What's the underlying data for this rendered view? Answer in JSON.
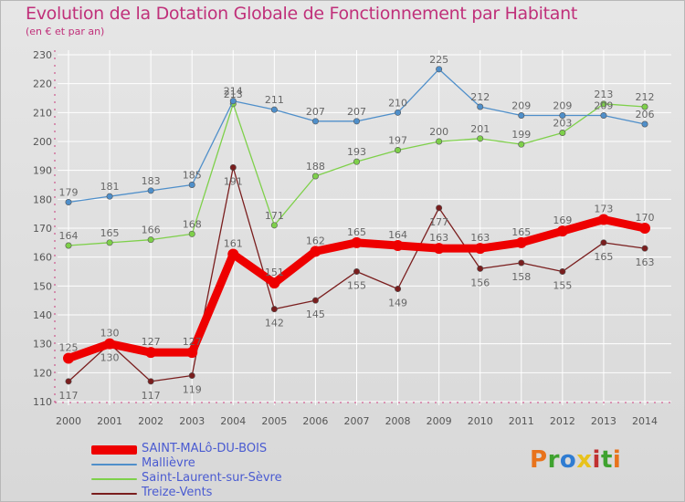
{
  "title": "Evolution de la Dotation Globale de Fonctionnement par Habitant",
  "subtitle": "(en € et par an)",
  "logo": {
    "text": "Proxiti",
    "colors": [
      "#e8731c",
      "#3fa22f",
      "#2f7cd2",
      "#e8c21c",
      "#c03030",
      "#3fa22f",
      "#e8731c"
    ]
  },
  "colors": {
    "grid": "#ffffff",
    "axis": "#888888",
    "tick_text": "#555555",
    "label_text": "#666666"
  },
  "chart_data": {
    "type": "line",
    "x": [
      "2000",
      "2001",
      "2002",
      "2003",
      "2004",
      "2005",
      "2006",
      "2007",
      "2008",
      "2009",
      "2010",
      "2011",
      "2012",
      "2013",
      "2014"
    ],
    "ylim": [
      110,
      230
    ],
    "yticks": [
      110,
      120,
      130,
      140,
      150,
      160,
      170,
      180,
      190,
      200,
      210,
      220,
      230
    ],
    "grid": true,
    "legend_position": "bottom-left",
    "series": [
      {
        "name": "SAINT-MALô-DU-BOIS",
        "color": "#ee0000",
        "thick": true,
        "values": [
          125,
          130,
          127,
          127,
          161,
          151,
          162,
          165,
          164,
          163,
          163,
          165,
          169,
          173,
          170
        ]
      },
      {
        "name": "Mallièvre",
        "color": "#4f8fca",
        "thick": false,
        "values": [
          179,
          181,
          183,
          185,
          214,
          211,
          207,
          207,
          210,
          225,
          212,
          209,
          209,
          209,
          206
        ]
      },
      {
        "name": "Saint-Laurent-sur-Sèvre",
        "color": "#7ed04a",
        "thick": false,
        "values": [
          164,
          165,
          166,
          168,
          213,
          171,
          188,
          193,
          197,
          200,
          201,
          199,
          203,
          213,
          212
        ]
      },
      {
        "name": "Treize-Vents",
        "color": "#7a1e1e",
        "thick": false,
        "values": [
          117,
          130,
          117,
          119,
          191,
          142,
          145,
          155,
          149,
          177,
          156,
          158,
          155,
          165,
          163
        ]
      }
    ]
  }
}
